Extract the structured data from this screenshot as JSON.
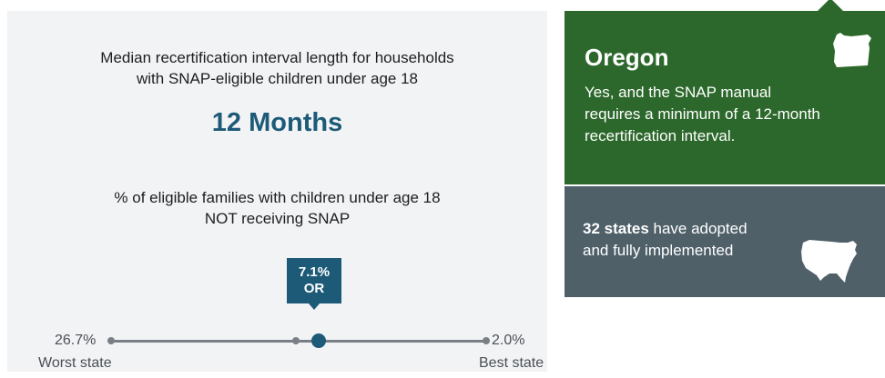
{
  "left_panel": {
    "interval_label": [
      "Median recertification interval length for households",
      "with SNAP-eligible children under age 18"
    ],
    "interval_value": "12 Months",
    "pct_label": [
      "% of eligible families with children under age 18",
      "NOT receiving SNAP"
    ],
    "callout": {
      "value": "7.1%",
      "state": "OR"
    },
    "scale": {
      "worst_value": "26.7%",
      "worst_caption": "Worst state",
      "best_value": "2.0%",
      "best_caption": "Best state"
    }
  },
  "status_panel": {
    "state_name": "Oregon",
    "lines": [
      "Yes, and the SNAP manual",
      "requires a minimum of a 12-month",
      "recertification interval."
    ],
    "icon": "oregon-state-outline"
  },
  "summary_panel": {
    "count": "32 states",
    "text_rest": " have adopted",
    "line2": "and fully implemented",
    "icon": "usa-map-outline"
  },
  "colors": {
    "panel_bg": "#f2f3f5",
    "accent_blue": "#1d5a78",
    "status_green": "#2c682b",
    "summary_slate": "#4f6069",
    "scale_gray": "#7a7f86"
  }
}
